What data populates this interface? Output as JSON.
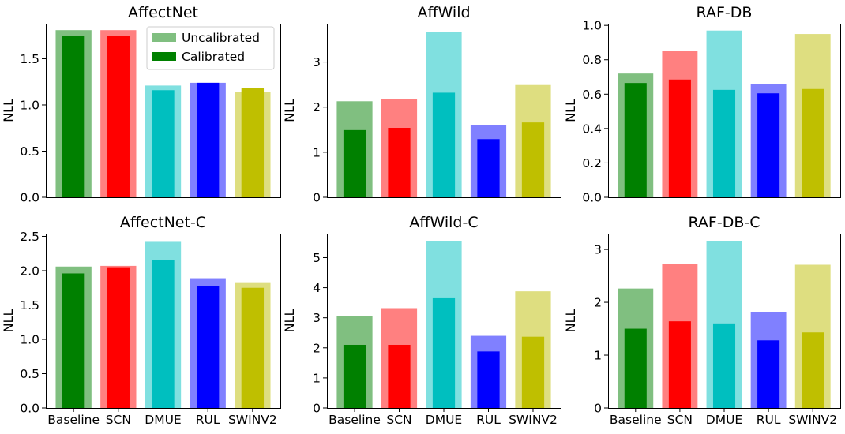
{
  "chart_data": [
    {
      "type": "bar",
      "title": "AffectNet",
      "ylabel": "NLL",
      "ylim": [
        0,
        1.88
      ],
      "yticks": [
        "0.0",
        "0.5",
        "1.0",
        "1.5"
      ],
      "yticks_values": [
        0,
        0.5,
        1.0,
        1.5
      ],
      "categories": [
        "Baseline",
        "SCN",
        "DMUE",
        "RUL",
        "SWINV2"
      ],
      "show_xticks": false,
      "legend": {
        "placement": "top-right",
        "entries": [
          "Uncalibrated",
          "Calibrated"
        ]
      },
      "series": [
        {
          "name": "Uncalibrated",
          "values": [
            1.81,
            1.81,
            1.21,
            1.24,
            1.14
          ]
        },
        {
          "name": "Calibrated",
          "values": [
            1.75,
            1.75,
            1.16,
            1.24,
            1.18
          ]
        }
      ]
    },
    {
      "type": "bar",
      "title": "AffWild",
      "ylabel": "NLL",
      "ylim": [
        0,
        3.85
      ],
      "yticks": [
        "0",
        "1",
        "2",
        "3"
      ],
      "yticks_values": [
        0,
        1,
        2,
        3
      ],
      "categories": [
        "Baseline",
        "SCN",
        "DMUE",
        "RUL",
        "SWINV2"
      ],
      "show_xticks": false,
      "series": [
        {
          "name": "Uncalibrated",
          "values": [
            2.13,
            2.18,
            3.67,
            1.61,
            2.49
          ]
        },
        {
          "name": "Calibrated",
          "values": [
            1.49,
            1.54,
            2.32,
            1.29,
            1.66
          ]
        }
      ]
    },
    {
      "type": "bar",
      "title": "RAF-DB",
      "ylabel": "NLL",
      "ylim": [
        0,
        1.01
      ],
      "yticks": [
        "0.0",
        "0.2",
        "0.4",
        "0.6",
        "0.8",
        "1.0"
      ],
      "yticks_values": [
        0,
        0.2,
        0.4,
        0.6,
        0.8,
        1.0
      ],
      "categories": [
        "Baseline",
        "SCN",
        "DMUE",
        "RUL",
        "SWINV2"
      ],
      "show_xticks": false,
      "series": [
        {
          "name": "Uncalibrated",
          "values": [
            0.72,
            0.85,
            0.97,
            0.66,
            0.95
          ]
        },
        {
          "name": "Calibrated",
          "values": [
            0.665,
            0.685,
            0.625,
            0.605,
            0.63
          ]
        }
      ]
    },
    {
      "type": "bar",
      "title": "AffectNet-C",
      "ylabel": "NLL",
      "ylim": [
        0,
        2.54
      ],
      "yticks": [
        "0.0",
        "0.5",
        "1.0",
        "1.5",
        "2.0",
        "2.5"
      ],
      "yticks_values": [
        0,
        0.5,
        1.0,
        1.5,
        2.0,
        2.5
      ],
      "categories": [
        "Baseline",
        "SCN",
        "DMUE",
        "RUL",
        "SWINV2"
      ],
      "show_xticks": true,
      "series": [
        {
          "name": "Uncalibrated",
          "values": [
            2.06,
            2.07,
            2.42,
            1.89,
            1.82
          ]
        },
        {
          "name": "Calibrated",
          "values": [
            1.96,
            2.05,
            2.15,
            1.78,
            1.75
          ]
        }
      ]
    },
    {
      "type": "bar",
      "title": "AffWild-C",
      "ylabel": "NLL",
      "ylim": [
        0,
        5.8
      ],
      "yticks": [
        "0",
        "1",
        "2",
        "3",
        "4",
        "5"
      ],
      "yticks_values": [
        0,
        1,
        2,
        3,
        4,
        5
      ],
      "categories": [
        "Baseline",
        "SCN",
        "DMUE",
        "RUL",
        "SWINV2"
      ],
      "show_xticks": true,
      "series": [
        {
          "name": "Uncalibrated",
          "values": [
            3.05,
            3.32,
            5.55,
            2.4,
            3.88
          ]
        },
        {
          "name": "Calibrated",
          "values": [
            2.1,
            2.1,
            3.65,
            1.88,
            2.37
          ]
        }
      ]
    },
    {
      "type": "bar",
      "title": "RAF-DB-C",
      "ylabel": "NLL",
      "ylim": [
        0,
        3.3
      ],
      "yticks": [
        "0",
        "1",
        "2",
        "3"
      ],
      "yticks_values": [
        0,
        1,
        2,
        3
      ],
      "categories": [
        "Baseline",
        "SCN",
        "DMUE",
        "RUL",
        "SWINV2"
      ],
      "show_xticks": true,
      "series": [
        {
          "name": "Uncalibrated",
          "values": [
            2.26,
            2.73,
            3.16,
            1.81,
            2.71
          ]
        },
        {
          "name": "Calibrated",
          "values": [
            1.5,
            1.64,
            1.6,
            1.28,
            1.43
          ]
        }
      ]
    }
  ],
  "colors": {
    "uncalibrated": [
      "#80bf80",
      "#ff8080",
      "#80e0e0",
      "#8080ff",
      "#dede80"
    ],
    "calibrated": [
      "#008000",
      "#ff0000",
      "#00bfbf",
      "#0000ff",
      "#bfbf00"
    ],
    "legend_uncalibrated": "#80bf80",
    "legend_calibrated": "#008000"
  }
}
